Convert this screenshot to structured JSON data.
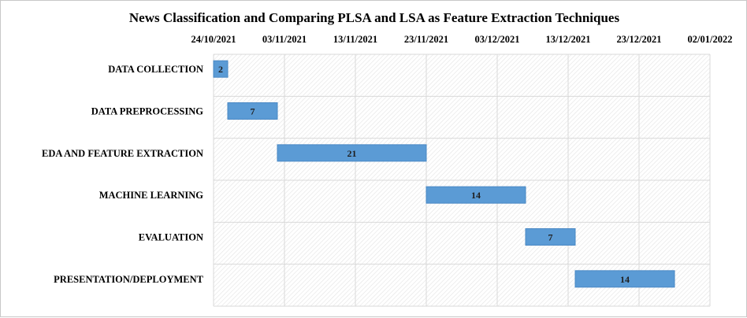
{
  "chart_data": {
    "type": "bar",
    "orientation": "horizontal",
    "title": "News Classification  and Comparing  PLSA and LSA as Feature Extraction  Techniques",
    "x_axis_position": "top",
    "x_ticks": [
      "24/10/2021",
      "03/11/2021",
      "13/11/2021",
      "23/11/2021",
      "03/12/2021",
      "13/12/2021",
      "23/12/2021",
      "02/01/2022"
    ],
    "xlim": [
      "24/10/2021",
      "02/01/2022"
    ],
    "grid": true,
    "categories": [
      "DATA COLLECTION",
      "DATA PREPROCESSING",
      "EDA AND FEATURE EXTRACTION",
      "MACHINE LEARNING",
      "EVALUATION",
      "PRESENTATION/DEPLOYMENT"
    ],
    "series": [
      {
        "start": [
          "24/10/2021",
          "26/10/2021",
          "02/11/2021",
          "23/11/2021",
          "07/12/2021",
          "14/12/2021"
        ],
        "duration_days": [
          2,
          7,
          21,
          14,
          7,
          14
        ],
        "labels": [
          "2",
          "7",
          "21",
          "14",
          "7",
          "14"
        ]
      }
    ],
    "colors": {
      "bar_fill": "#5b9bd5",
      "bar_stroke": "#4a88c4",
      "grid": "#d9d9d9",
      "plot_hatch": "#e3e3e3"
    }
  }
}
